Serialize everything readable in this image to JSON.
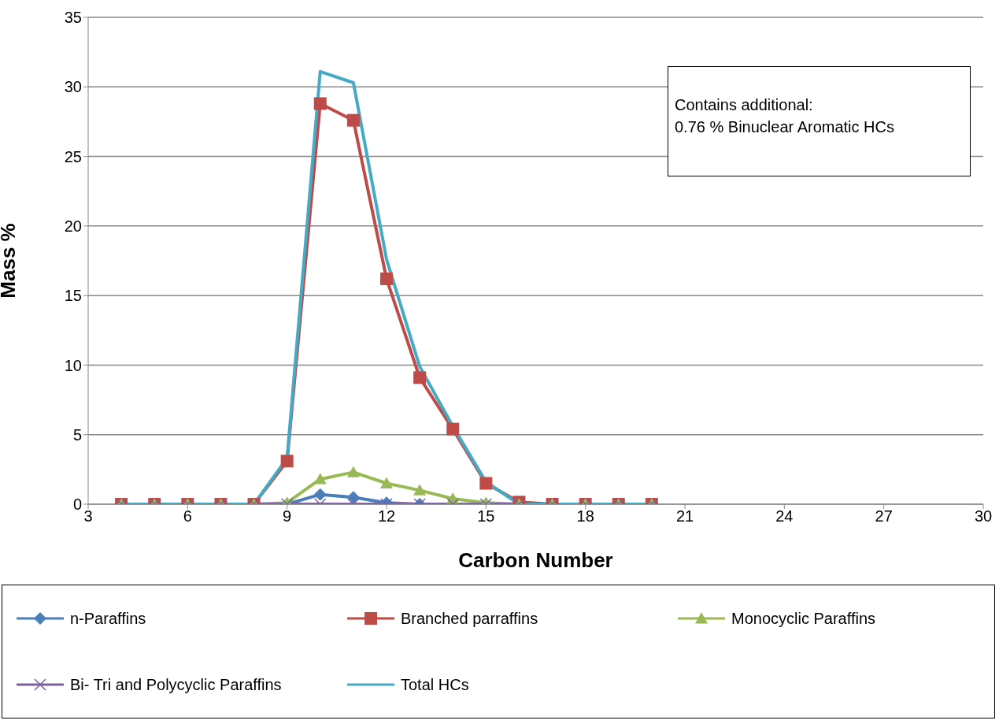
{
  "chart_data": {
    "type": "line",
    "xlabel": "Carbon Number",
    "ylabel": "Mass %",
    "x": [
      4,
      5,
      6,
      7,
      8,
      9,
      10,
      11,
      12,
      13,
      14,
      15,
      16,
      17,
      18,
      19,
      20
    ],
    "series": [
      {
        "name": "n-Paraffins",
        "color": "#4a7ebb",
        "marker": "diamond",
        "values": [
          0,
          0,
          0,
          0,
          0,
          0,
          0.7,
          0.5,
          0.1,
          0,
          0,
          0,
          0,
          0,
          0,
          0,
          0
        ]
      },
      {
        "name": "Branched parraffins",
        "color": "#be4b48",
        "marker": "square",
        "values": [
          0,
          0,
          0,
          0,
          0,
          3.1,
          28.8,
          27.6,
          16.2,
          9.1,
          5.4,
          1.5,
          0.15,
          0,
          0,
          0,
          0
        ]
      },
      {
        "name": "Monocyclic Paraffins",
        "color": "#98b954",
        "marker": "triangle",
        "values": [
          0,
          0,
          0,
          0,
          0,
          0.1,
          1.8,
          2.3,
          1.5,
          1.0,
          0.4,
          0.1,
          0,
          0,
          0,
          0,
          0
        ]
      },
      {
        "name": "Bi- Tri and Polycyclic Paraffins",
        "color": "#7d60a0",
        "marker": "cross",
        "values": [
          0,
          0,
          0,
          0,
          0,
          0,
          0,
          0,
          0,
          0,
          0,
          0,
          0,
          0,
          0,
          0,
          0
        ]
      },
      {
        "name": "Total HCs",
        "color": "#46aac5",
        "marker": "none",
        "values": [
          0,
          0,
          0,
          0,
          0,
          3.3,
          31.1,
          30.3,
          17.6,
          9.9,
          5.6,
          1.6,
          0,
          0,
          0,
          0,
          0
        ]
      }
    ],
    "xlim": [
      3,
      30
    ],
    "xticks": [
      3,
      6,
      9,
      12,
      15,
      18,
      21,
      24,
      27,
      30
    ],
    "ylim": [
      0,
      35
    ],
    "yticks": [
      0,
      5,
      10,
      15,
      20,
      25,
      30,
      35
    ],
    "grid": "y",
    "legend": "bottom",
    "annotations": [
      "Contains additional:\n0.76 % Binuclear Aromatic HCs"
    ]
  }
}
